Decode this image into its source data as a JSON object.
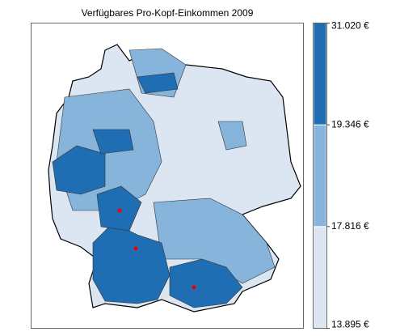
{
  "chart_data": {
    "type": "choropleth",
    "title": "Verfügbares Pro-Kopf-Einkommen 2009",
    "legend": {
      "breaks": [
        {
          "value": 13895,
          "label": "13.895 €"
        },
        {
          "value": 17816,
          "label": "17.816 €"
        },
        {
          "value": 19346,
          "label": "19.346 €"
        },
        {
          "value": 31020,
          "label": "31.020 €"
        }
      ],
      "colors": [
        "#dce6f2",
        "#86b4da",
        "#1f6db3"
      ]
    }
  }
}
